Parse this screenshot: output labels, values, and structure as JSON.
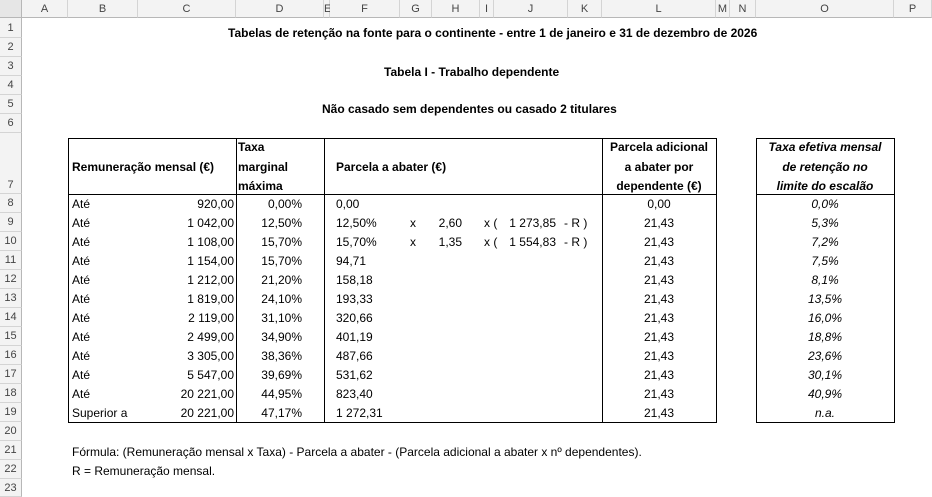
{
  "columns": [
    "A",
    "B",
    "C",
    "D",
    "E",
    "F",
    "G",
    "H",
    "I",
    "J",
    "K",
    "L",
    "M",
    "N",
    "O",
    "P"
  ],
  "rows": [
    "1",
    "2",
    "3",
    "4",
    "5",
    "6",
    "7",
    "8",
    "9",
    "10",
    "11",
    "12",
    "13",
    "14",
    "15",
    "16",
    "17",
    "18",
    "19",
    "20",
    "21",
    "22",
    "23"
  ],
  "title1": "Tabelas de retenção na fonte para o continente - entre 1 de janeiro e 31 de dezembro de 2026",
  "title2": "Tabela I - Trabalho dependente",
  "title3": "Não casado sem dependentes ou casado 2 titulares",
  "headers": {
    "remuneracao": "Remuneração mensal (€)",
    "taxa": [
      "Taxa",
      "marginal",
      "máxima"
    ],
    "parcela": "Parcela a abater (€)",
    "adicional": [
      "Parcela adicional",
      "a abater por",
      "dependente (€)"
    ],
    "efetiva": [
      "Taxa efetiva mensal",
      "de retenção no",
      "limite do escalão"
    ]
  },
  "table": [
    {
      "label": "Até",
      "rem": "920,00",
      "taxa": "0,00%",
      "parcela": "0,00",
      "adic": "0,00",
      "efetiva": "0,0%"
    },
    {
      "label": "Até",
      "rem": "1 042,00",
      "taxa": "12,50%",
      "parcela": "12,50%",
      "x1": "x",
      "mult": "2,60",
      "x2": "x (",
      "base": "1 273,85",
      "tail": "- R )",
      "adic": "21,43",
      "efetiva": "5,3%"
    },
    {
      "label": "Até",
      "rem": "1 108,00",
      "taxa": "15,70%",
      "parcela": "15,70%",
      "x1": "x",
      "mult": "1,35",
      "x2": "x (",
      "base": "1 554,83",
      "tail": "- R )",
      "adic": "21,43",
      "efetiva": "7,2%"
    },
    {
      "label": "Até",
      "rem": "1 154,00",
      "taxa": "15,70%",
      "parcela": "94,71",
      "adic": "21,43",
      "efetiva": "7,5%"
    },
    {
      "label": "Até",
      "rem": "1 212,00",
      "taxa": "21,20%",
      "parcela": "158,18",
      "adic": "21,43",
      "efetiva": "8,1%"
    },
    {
      "label": "Até",
      "rem": "1 819,00",
      "taxa": "24,10%",
      "parcela": "193,33",
      "adic": "21,43",
      "efetiva": "13,5%"
    },
    {
      "label": "Até",
      "rem": "2 119,00",
      "taxa": "31,10%",
      "parcela": "320,66",
      "adic": "21,43",
      "efetiva": "16,0%"
    },
    {
      "label": "Até",
      "rem": "2 499,00",
      "taxa": "34,90%",
      "parcela": "401,19",
      "adic": "21,43",
      "efetiva": "18,8%"
    },
    {
      "label": "Até",
      "rem": "3 305,00",
      "taxa": "38,36%",
      "parcela": "487,66",
      "adic": "21,43",
      "efetiva": "23,6%"
    },
    {
      "label": "Até",
      "rem": "5 547,00",
      "taxa": "39,69%",
      "parcela": "531,62",
      "adic": "21,43",
      "efetiva": "30,1%"
    },
    {
      "label": "Até",
      "rem": "20 221,00",
      "taxa": "44,95%",
      "parcela": "823,40",
      "adic": "21,43",
      "efetiva": "40,9%"
    },
    {
      "label": "Superior a",
      "rem": "20 221,00",
      "taxa": "47,17%",
      "parcela": "1 272,31",
      "adic": "21,43",
      "efetiva": "n.a."
    }
  ],
  "formula": "Fórmula: (Remuneração mensal x Taxa) - Parcela a abater - (Parcela adicional a abater x nº dependentes).",
  "note": "R = Remuneração mensal."
}
